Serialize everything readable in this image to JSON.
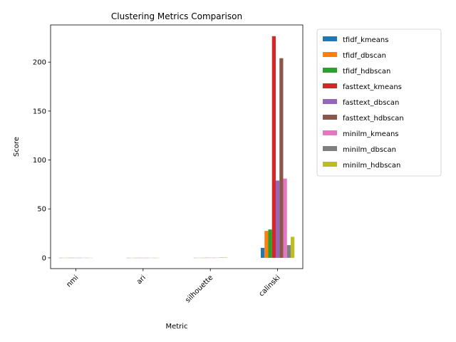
{
  "chart_data": {
    "type": "bar",
    "title": "Clustering Metrics Comparison",
    "xlabel": "Metric",
    "ylabel": "Score",
    "categories": [
      "nmi",
      "ari",
      "silhouette",
      "calinski"
    ],
    "ylim": [
      -11,
      238
    ],
    "yticks": [
      0,
      50,
      100,
      150,
      200
    ],
    "legend_position": "outside-right",
    "grid": false,
    "series": [
      {
        "name": "tfidf_kmeans",
        "color": "#1f77b4",
        "values": [
          0.02,
          0.01,
          0.02,
          10.2
        ]
      },
      {
        "name": "tfidf_dbscan",
        "color": "#ff7f0e",
        "values": [
          0.02,
          0.01,
          0.05,
          27.5
        ]
      },
      {
        "name": "tfidf_hdbscan",
        "color": "#2ca02c",
        "values": [
          0.03,
          0.01,
          0.03,
          29.0
        ]
      },
      {
        "name": "fasttext_kmeans",
        "color": "#d62728",
        "values": [
          0.05,
          0.02,
          0.08,
          226.5
        ]
      },
      {
        "name": "fasttext_dbscan",
        "color": "#9467bd",
        "values": [
          0.03,
          0.01,
          0.1,
          79.0
        ]
      },
      {
        "name": "fasttext_hdbscan",
        "color": "#8c564b",
        "values": [
          0.04,
          0.02,
          0.06,
          204.0
        ]
      },
      {
        "name": "minilm_kmeans",
        "color": "#e377c2",
        "values": [
          0.06,
          0.03,
          0.07,
          81.0
        ]
      },
      {
        "name": "minilm_dbscan",
        "color": "#7f7f7f",
        "values": [
          0.02,
          0.01,
          0.3,
          13.0
        ]
      },
      {
        "name": "minilm_hdbscan",
        "color": "#bcbd22",
        "values": [
          0.03,
          0.01,
          0.4,
          21.5
        ]
      }
    ]
  }
}
